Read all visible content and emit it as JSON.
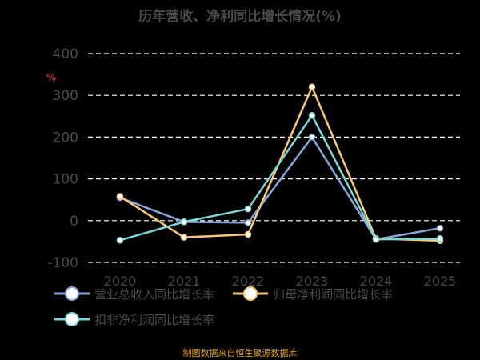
{
  "title": "历年营收、净利同比增长情况(%)",
  "unit": "%",
  "source": "制图数据来自恒生聚源数据库",
  "chart_data": {
    "type": "line",
    "title": "历年营收、净利同比增长情况(%)",
    "categories": [
      "2020",
      "2021",
      "2022",
      "2023",
      "2024",
      "2025"
    ],
    "ylim": [
      -100,
      400
    ],
    "yticks": [
      -100,
      0,
      100,
      200,
      300,
      400
    ],
    "grid": true,
    "legend_position": "bottom",
    "series": [
      {
        "name": "营业总收入同比增长率",
        "values": [
          55,
          -3,
          -5,
          200,
          -45,
          -18
        ],
        "color": "#8aa6d8"
      },
      {
        "name": "归母净利润同比增长率",
        "values": [
          58,
          -40,
          -33,
          320,
          -43,
          -48
        ],
        "color": "#f5c87a"
      },
      {
        "name": "扣非净利润同比增长率",
        "values": [
          -47,
          -3,
          28,
          252,
          -45,
          -43
        ],
        "color": "#7fd4d4"
      }
    ]
  }
}
